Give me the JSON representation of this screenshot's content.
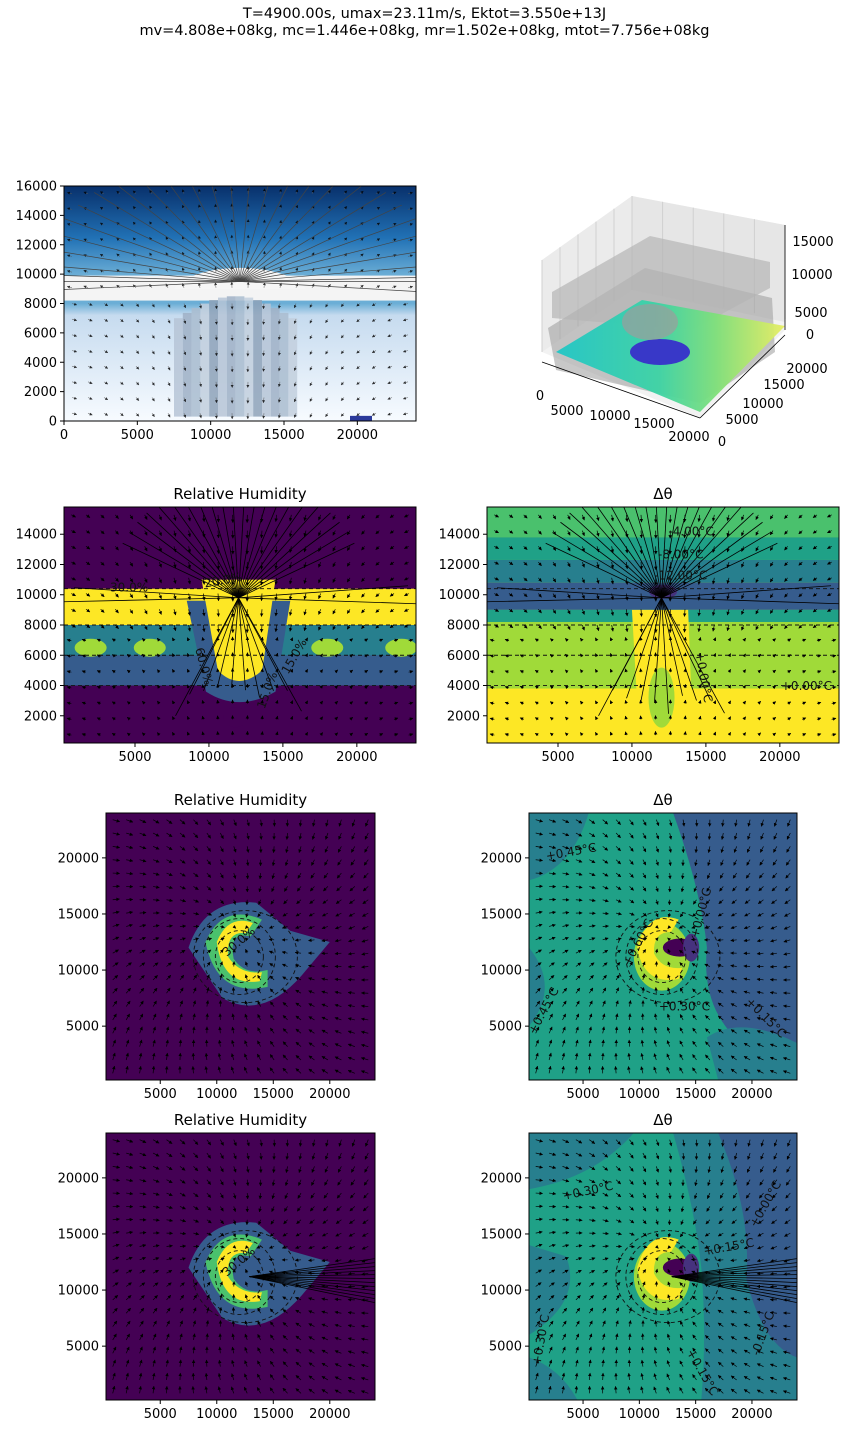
{
  "suptitle": {
    "line1": "T=4900.00s, umax=23.11m/s, Ektot=3.550e+13J",
    "line2": "mv=4.808e+08kg, mc=1.446e+08kg, mr=1.502e+08kg, mtot=7.756e+08kg"
  },
  "colors": {
    "viridis": [
      "#440154",
      "#46327e",
      "#365c8d",
      "#277f8e",
      "#1fa187",
      "#4ac16d",
      "#a0da39",
      "#fde725"
    ],
    "blues": [
      "#f7fbff",
      "#c6dbef",
      "#6baed6",
      "#2171b5",
      "#08306b"
    ],
    "cloud": "#f2f2f2",
    "rain": "#2b3a9b"
  },
  "chart_data": [
    {
      "type": "heatmap",
      "panel": "xz-cloud",
      "title": "",
      "xlim": [
        0,
        24000
      ],
      "ylim": [
        0,
        16000
      ],
      "xticks": [
        "0",
        "5000",
        "10000",
        "15000",
        "20000"
      ],
      "yticks": [
        "0",
        "2000",
        "4000",
        "6000",
        "8000",
        "10000",
        "12000",
        "14000",
        "16000"
      ],
      "cloud_base": 8000,
      "cloud_top": 10600,
      "tropopause": 9400,
      "rain_region": [
        9000,
        15000
      ],
      "rain_box_x": [
        19500,
        21000
      ]
    },
    {
      "type": "surface3d",
      "panel": "3d-view",
      "title": "",
      "xticks": [
        "0",
        "5000",
        "10000",
        "15000",
        "20000"
      ],
      "yticks": [
        "0",
        "5000",
        "10000",
        "15000",
        "20000"
      ],
      "zticks": [
        "0",
        "5000",
        "10000",
        "15000"
      ]
    },
    {
      "type": "heatmap",
      "panel": "xz-rh",
      "title": "Relative Humidity",
      "xlim": [
        200,
        24000
      ],
      "ylim": [
        200,
        15800
      ],
      "xticks": [
        "5000",
        "10000",
        "15000",
        "20000"
      ],
      "yticks": [
        "2000",
        "4000",
        "6000",
        "8000",
        "10000",
        "12000",
        "14000"
      ],
      "contour_labels": [
        "30.0%",
        "20.0%",
        "15.0%",
        "60.0%",
        "15.0%"
      ]
    },
    {
      "type": "heatmap",
      "panel": "xz-dtheta",
      "title": "Δθ",
      "xlim": [
        200,
        24000
      ],
      "ylim": [
        200,
        15800
      ],
      "xticks": [
        "5000",
        "10000",
        "15000",
        "20000"
      ],
      "yticks": [
        "2000",
        "4000",
        "6000",
        "8000",
        "10000",
        "12000",
        "14000"
      ],
      "contour_labels": [
        "-4.00°C",
        "-8.00°C",
        "-12.00°C",
        "+0.00°C",
        "+0.00°C"
      ]
    },
    {
      "type": "heatmap",
      "panel": "xy-rh-1",
      "title": "Relative Humidity",
      "xlim": [
        200,
        24000
      ],
      "ylim": [
        200,
        24000
      ],
      "xticks": [
        "5000",
        "10000",
        "15000",
        "20000"
      ],
      "yticks": [
        "5000",
        "10000",
        "15000",
        "20000"
      ],
      "contour_labels": [
        "30.0%"
      ]
    },
    {
      "type": "heatmap",
      "panel": "xy-dtheta-1",
      "title": "Δθ",
      "xlim": [
        200,
        24000
      ],
      "ylim": [
        200,
        24000
      ],
      "xticks": [
        "5000",
        "10000",
        "15000",
        "20000"
      ],
      "yticks": [
        "5000",
        "10000",
        "15000",
        "20000"
      ],
      "contour_labels": [
        "+0.45°C",
        "+0.60°C",
        "+0.45°C",
        "+0.30°C",
        "+0.15°C",
        "+0.00°C"
      ]
    },
    {
      "type": "heatmap",
      "panel": "xy-rh-2",
      "title": "Relative Humidity",
      "xlim": [
        200,
        24000
      ],
      "ylim": [
        200,
        24000
      ],
      "xticks": [
        "5000",
        "10000",
        "15000",
        "20000"
      ],
      "yticks": [
        "5000",
        "10000",
        "15000",
        "20000"
      ],
      "contour_labels": [
        "30.0%"
      ]
    },
    {
      "type": "heatmap",
      "panel": "xy-dtheta-2",
      "title": "Δθ",
      "xlim": [
        200,
        24000
      ],
      "ylim": [
        200,
        24000
      ],
      "xticks": [
        "5000",
        "10000",
        "15000",
        "20000"
      ],
      "yticks": [
        "5000",
        "10000",
        "15000",
        "20000"
      ],
      "contour_labels": [
        "+0.30°C",
        "+0.30°C",
        "+0.15°C",
        "+0.00°C",
        "-0.15°C",
        "+0.15°C"
      ]
    }
  ]
}
